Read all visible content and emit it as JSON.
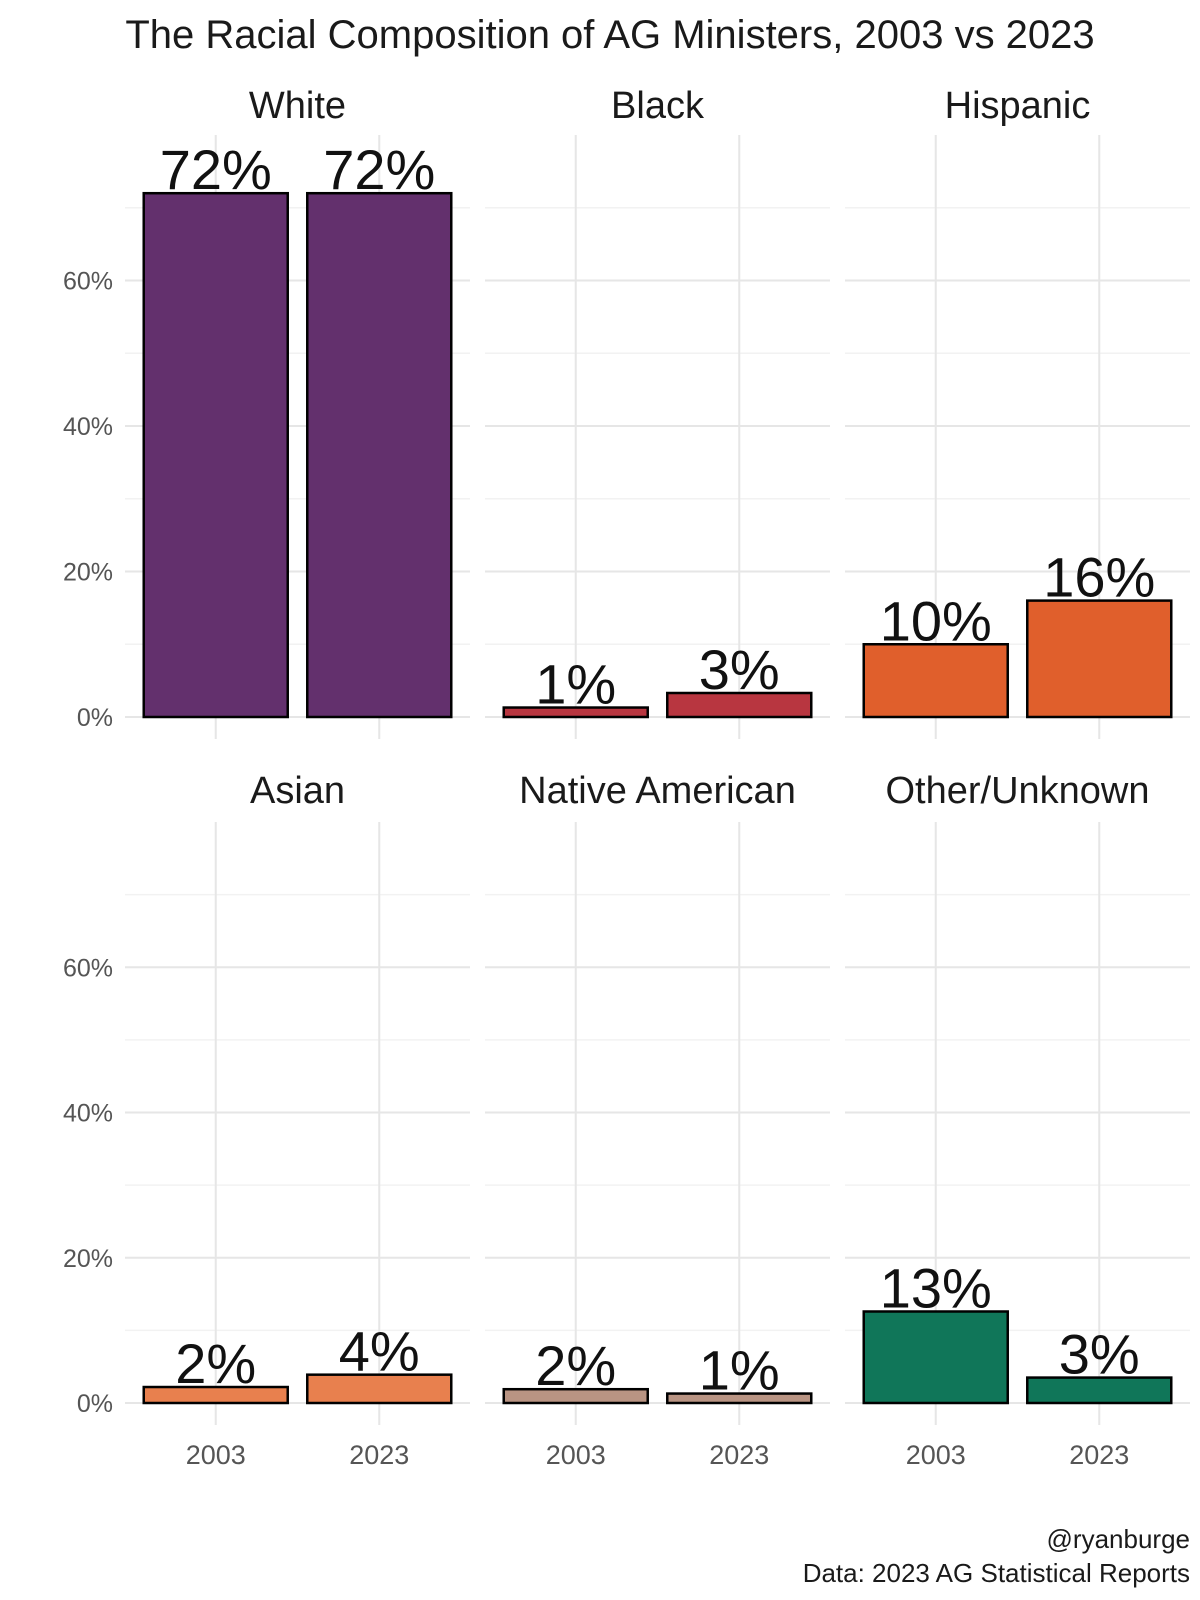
{
  "chart_data": {
    "type": "bar",
    "title": "The Racial Composition of AG Ministers, 2003 vs 2023",
    "xlabel": "",
    "ylabel": "",
    "categories": [
      "2003",
      "2023"
    ],
    "ylim": [
      0,
      0.8
    ],
    "y_ticks": [
      0,
      0.2,
      0.4,
      0.6
    ],
    "y_tick_labels": [
      "0%",
      "20%",
      "40%",
      "60%"
    ],
    "grid": true,
    "legend": "none",
    "facets": [
      {
        "name": "White",
        "values": [
          0.72,
          0.72
        ],
        "labels": [
          "72%",
          "72%"
        ],
        "color": "#63306d"
      },
      {
        "name": "Black",
        "values": [
          0.013,
          0.033
        ],
        "labels": [
          "1%",
          "3%"
        ],
        "color": "#b83640"
      },
      {
        "name": "Hispanic",
        "values": [
          0.1,
          0.16
        ],
        "labels": [
          "10%",
          "16%"
        ],
        "color": "#e05f2c"
      },
      {
        "name": "Asian",
        "values": [
          0.022,
          0.039
        ],
        "labels": [
          "2%",
          "4%"
        ],
        "color": "#e8804e"
      },
      {
        "name": "Native American",
        "values": [
          0.019,
          0.013
        ],
        "labels": [
          "2%",
          "1%"
        ],
        "color": "#b99483"
      },
      {
        "name": "Other/Unknown",
        "values": [
          0.126,
          0.035
        ],
        "labels": [
          "13%",
          "3%"
        ],
        "color": "#107659"
      }
    ],
    "caption": [
      "@ryanburge",
      "Data: 2023 AG Statistical Reports"
    ]
  }
}
